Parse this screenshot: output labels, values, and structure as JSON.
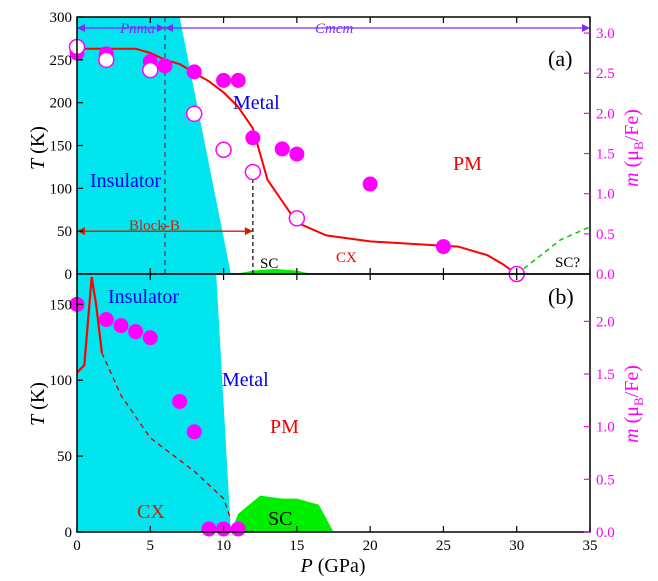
{
  "chart_data": [
    {
      "panel": "(a)",
      "type": "scatter",
      "xlim": [
        0,
        35
      ],
      "ylim": [
        0,
        300
      ],
      "y2lim": [
        0,
        3.2
      ],
      "xticks": [
        0,
        5,
        10,
        15,
        20,
        25,
        30,
        35
      ],
      "yticks": [
        0,
        50,
        100,
        150,
        200,
        250,
        300
      ],
      "y2ticks": [
        0.0,
        0.5,
        1.0,
        1.5,
        2.0,
        2.5,
        3.0
      ],
      "ylabel_T": "T",
      "ylabel_unit": " (K)",
      "y2label_m": "m",
      "y2label_unit": " (μ",
      "y2label_sub": "B",
      "y2label_tail": "/Fe)",
      "phase_labels": {
        "pnma": "Pnma",
        "cmcm": "Cmcm",
        "metal": "Metal",
        "insulator": "Insulator",
        "pm": "PM",
        "blockb": "Block-B",
        "sc": "SC",
        "cx": "CX",
        "scq": "SC?"
      },
      "phase_boundary_x": 6,
      "blockb_range": [
        0,
        12
      ],
      "insulator_region": [
        [
          0,
          0
        ],
        [
          0,
          300
        ],
        [
          7,
          300
        ],
        [
          10.5,
          0
        ]
      ],
      "sc_region": [
        [
          10.8,
          0
        ],
        [
          12,
          4
        ],
        [
          13.5,
          6
        ],
        [
          15,
          4
        ],
        [
          16,
          0
        ]
      ],
      "series": [
        {
          "role": "filled-magenta-circles",
          "x": [
            0,
            2,
            5,
            6,
            8,
            10,
            11,
            12,
            14,
            15,
            20,
            25
          ],
          "y": [
            258,
            257,
            248,
            243,
            236,
            226,
            226,
            159,
            146,
            140,
            105,
            32
          ]
        },
        {
          "role": "open-magenta-circles",
          "x": [
            0,
            2,
            5,
            8,
            10,
            12,
            15,
            30
          ],
          "y": [
            265,
            250,
            238,
            187,
            145,
            119,
            65,
            0
          ]
        },
        {
          "role": "red-line",
          "x": [
            0,
            4,
            5,
            6,
            7,
            8,
            9,
            10,
            11,
            12,
            13,
            15,
            17,
            20,
            23,
            26,
            28,
            29,
            30
          ],
          "y": [
            263,
            263,
            258,
            250,
            245,
            235,
            225,
            212,
            195,
            170,
            110,
            60,
            45,
            38,
            35,
            32,
            22,
            12,
            0
          ]
        },
        {
          "role": "green-dashed-line",
          "x": [
            30,
            31.5,
            33,
            35
          ],
          "y": [
            0,
            20,
            40,
            55
          ]
        }
      ]
    },
    {
      "panel": "(b)",
      "type": "scatter",
      "xlim": [
        0,
        35
      ],
      "ylim": [
        0,
        170
      ],
      "y2lim": [
        0,
        2.45
      ],
      "xticks": [
        0,
        5,
        10,
        15,
        20,
        25,
        30,
        35
      ],
      "yticks": [
        0,
        50,
        100,
        150
      ],
      "y2ticks": [
        0.0,
        0.5,
        1.0,
        1.5,
        2.0
      ],
      "ylabel_T": "T",
      "ylabel_unit": " (K)",
      "y2label_m": "m",
      "y2label_unit": " (μ",
      "y2label_sub": "B",
      "y2label_tail": "/Fe)",
      "xlabel_P": "P",
      "xlabel_unit": " (GPa)",
      "phase_labels": {
        "insulator": "Insulator",
        "metal": "Metal",
        "pm": "PM",
        "cx": "CX",
        "sc": "SC"
      },
      "insulator_region": [
        [
          0,
          0
        ],
        [
          0,
          170
        ],
        [
          9.5,
          170
        ],
        [
          10.5,
          0
        ]
      ],
      "sc_region": [
        [
          10.5,
          0
        ],
        [
          11,
          12
        ],
        [
          12.5,
          24
        ],
        [
          14,
          22
        ],
        [
          15,
          22
        ],
        [
          16.5,
          18
        ],
        [
          17.5,
          0
        ]
      ],
      "series": [
        {
          "role": "filled-magenta-circles",
          "x": [
            0,
            2,
            3,
            4,
            5,
            7,
            8,
            9,
            10,
            11
          ],
          "y": [
            150,
            140,
            136,
            132,
            128,
            86,
            66,
            2,
            2,
            2
          ]
        },
        {
          "role": "red-line",
          "x": [
            0,
            0.5,
            1.0,
            1.3,
            1.7
          ],
          "y": [
            105,
            110,
            168,
            150,
            118
          ]
        },
        {
          "role": "red-dashed-line",
          "x": [
            1.7,
            3,
            5,
            8,
            10,
            10.5
          ],
          "y": [
            118,
            90,
            62,
            40,
            22,
            8
          ]
        }
      ]
    }
  ]
}
